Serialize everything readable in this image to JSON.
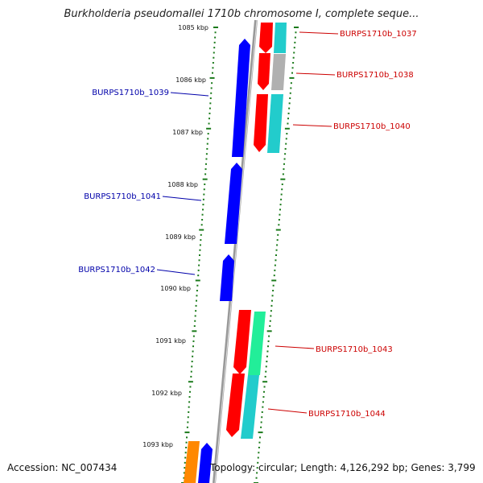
{
  "title": "Burkholderia pseudomallei 1710b chromosome I, complete seque...",
  "footer": {
    "accession": "Accession: NC_007434",
    "summary": "Topology: circular; Length: 4,126,292 bp; Genes: 3,799"
  },
  "kbp_labels": [
    "1085 kbp",
    "1086 kbp",
    "1087 kbp",
    "1088 kbp",
    "1089 kbp",
    "1090 kbp",
    "1091 kbp",
    "1092 kbp",
    "1093 kbp"
  ],
  "genes": {
    "reverse": [
      "BURPS1710b_1037",
      "BURPS1710b_1038",
      "BURPS1710b_1040",
      "BURPS1710b_1043",
      "BURPS1710b_1044"
    ],
    "forward": [
      "BURPS1710b_1039",
      "BURPS1710b_1041",
      "BURPS1710b_1042"
    ]
  },
  "colors": {
    "forward_strand": "#0000ff",
    "reverse_strand": "#ff0000",
    "forward_label": "#0000aa",
    "reverse_label": "#cc0000",
    "tick": "#1a7a1a",
    "backbone": "#888888",
    "cyan_feature": "#22cccc",
    "green_feature": "#22ee99",
    "gray_feature": "#b0b0b0",
    "orange_feature": "#ff8800"
  }
}
